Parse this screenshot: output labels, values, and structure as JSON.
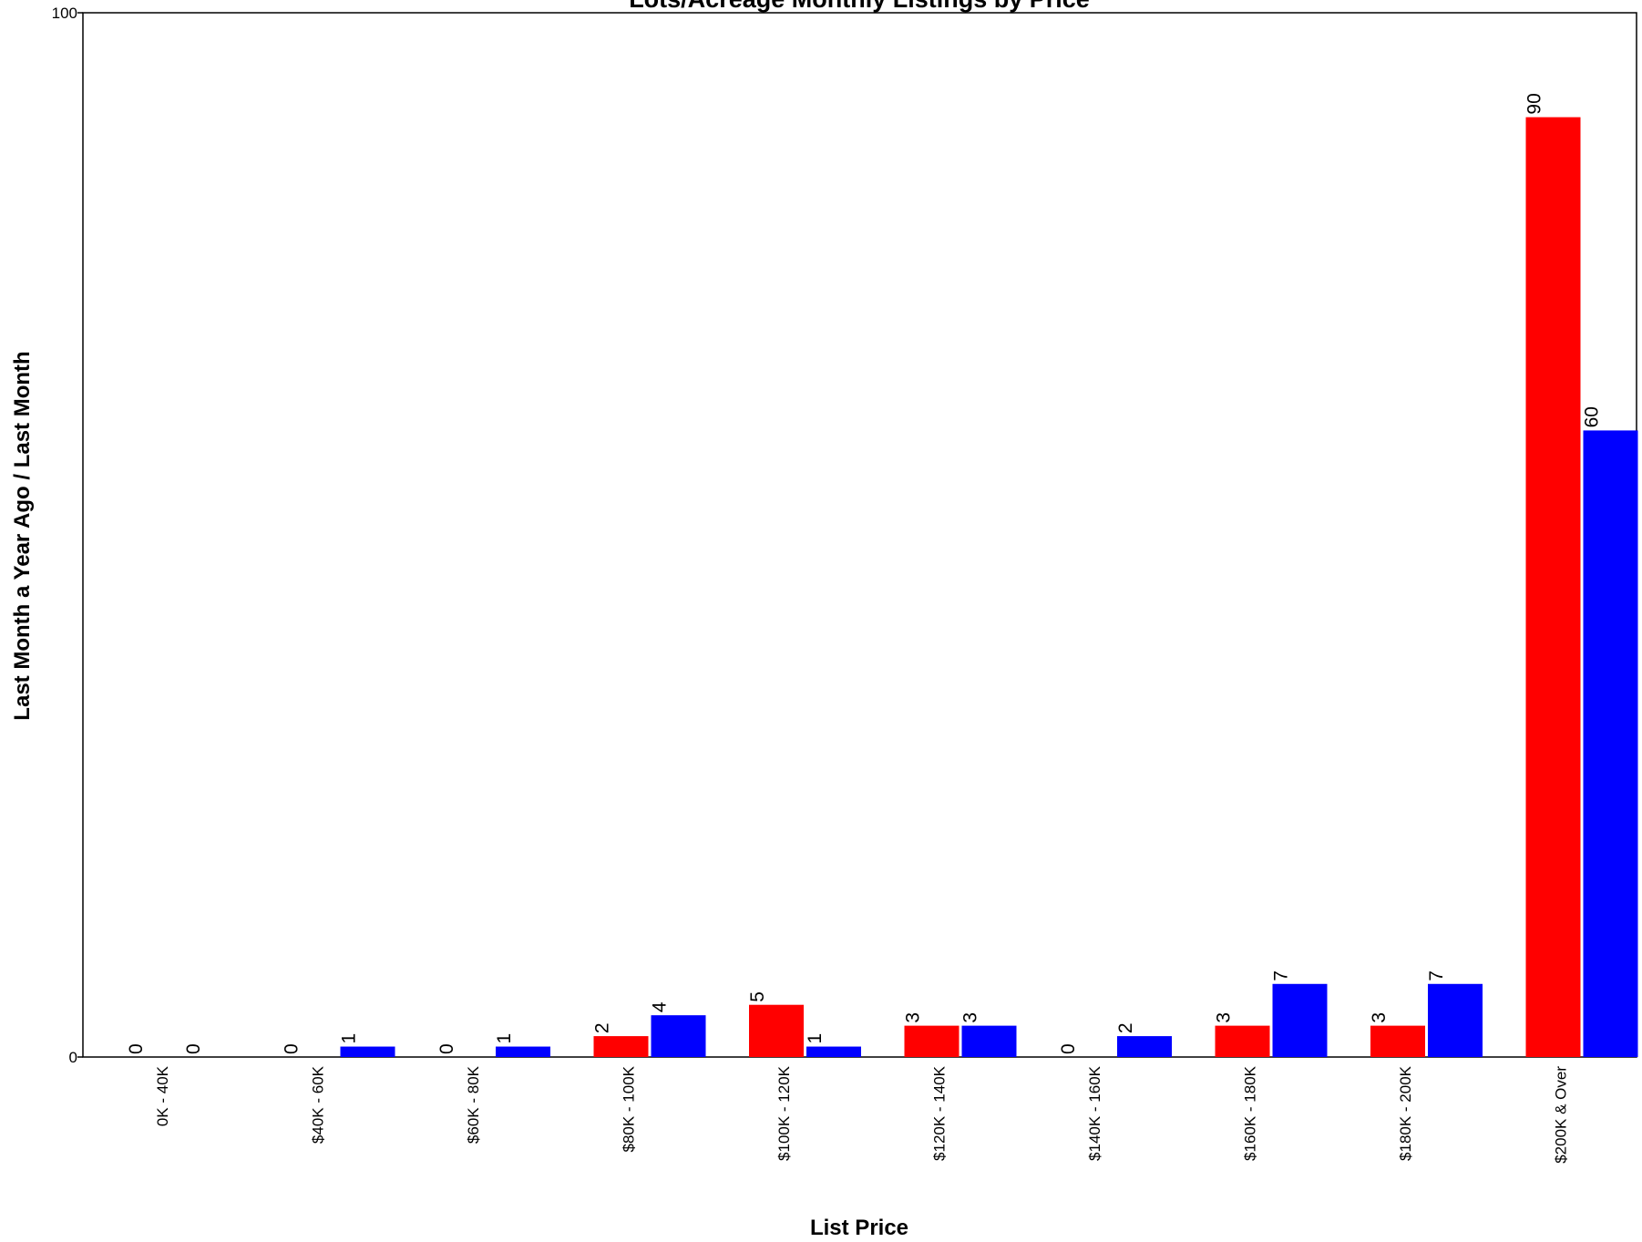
{
  "chart_data": {
    "type": "bar",
    "title": "Lots/Acreage Monthly Listings by Price",
    "xlabel": "List Price",
    "ylabel": "Last Month a Year Ago / Last Month",
    "ylim": [
      0,
      100
    ],
    "yticks": [
      0,
      100
    ],
    "grid": false,
    "categories": [
      "0K - 40K",
      "$40K - 60K",
      "$60K - 80K",
      "$80K - 100K",
      "$100K - 120K",
      "$120K - 140K",
      "$140K - 160K",
      "$160K - 180K",
      "$180K - 200K",
      "$200K & Over"
    ],
    "series": [
      {
        "color": "#ff0000",
        "values": [
          0,
          0,
          0,
          2,
          5,
          3,
          0,
          3,
          3,
          90
        ]
      },
      {
        "color": "#0000ff",
        "values": [
          0,
          1,
          1,
          4,
          1,
          3,
          2,
          7,
          7,
          60
        ]
      }
    ]
  }
}
